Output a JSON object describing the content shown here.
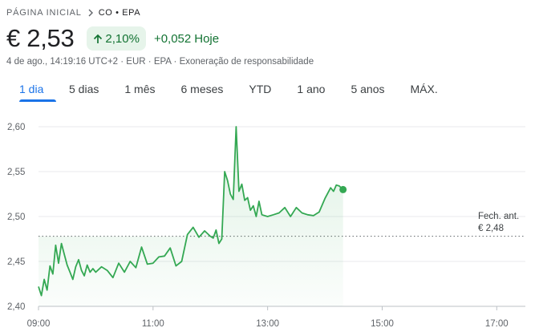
{
  "breadcrumb": {
    "home": "PÁGINA INICIAL",
    "crumb": "CO • EPA"
  },
  "quote": {
    "price": "€ 2,53",
    "change_pct": "2,10%",
    "change_abs": "+0,052",
    "change_period": "Hoje"
  },
  "meta": {
    "datetime": "4 de ago., 14:19:16 UTC+2",
    "currency": "EUR",
    "exchange": "EPA",
    "disclaimer": "Exoneração de responsabilidade"
  },
  "tabs": [
    {
      "label": "1 dia",
      "active": true
    },
    {
      "label": "5 dias",
      "active": false
    },
    {
      "label": "1 mês",
      "active": false
    },
    {
      "label": "6 meses",
      "active": false
    },
    {
      "label": "YTD",
      "active": false
    },
    {
      "label": "1 ano",
      "active": false
    },
    {
      "label": "5 anos",
      "active": false
    },
    {
      "label": "MÁX.",
      "active": false
    }
  ],
  "colors": {
    "up": "#137333",
    "line": "#34a853",
    "badge_bg": "#e6f4ea",
    "accent": "#1a73e8"
  },
  "icons": {
    "breadcrumb_separator": "chevron-right-icon",
    "trend": "arrow-up-icon"
  },
  "chart_data": {
    "type": "line",
    "title": "",
    "xlabel": "",
    "ylabel": "",
    "ylim": [
      2.4,
      2.6
    ],
    "yticks": [
      2.4,
      2.45,
      2.5,
      2.55,
      2.6
    ],
    "ytick_labels": [
      "2,40",
      "2,45",
      "2,50",
      "2,55",
      "2,60"
    ],
    "xlim": [
      "09:00",
      "17:30"
    ],
    "xticks": [
      "09:00",
      "11:00",
      "13:00",
      "15:00",
      "17:00"
    ],
    "grid": true,
    "previous_close": {
      "label": "Fech. ant.",
      "value_label": "€ 2,48",
      "value": 2.478
    },
    "series": [
      {
        "x": [
          "09:00",
          "09:03",
          "09:06",
          "09:09",
          "09:12",
          "09:15",
          "09:18",
          "09:21",
          "09:24",
          "09:27",
          "09:30",
          "09:33",
          "09:36",
          "09:39",
          "09:42",
          "09:45",
          "09:48",
          "09:51",
          "09:54",
          "09:57",
          "10:00",
          "10:06",
          "10:12",
          "10:18",
          "10:24",
          "10:30",
          "10:36",
          "10:42",
          "10:48",
          "10:54",
          "11:00",
          "11:06",
          "11:12",
          "11:18",
          "11:24",
          "11:30",
          "11:36",
          "11:42",
          "11:48",
          "11:54",
          "12:00",
          "12:03",
          "12:06",
          "12:09",
          "12:12",
          "12:15",
          "12:18",
          "12:21",
          "12:24",
          "12:27",
          "12:30",
          "12:33",
          "12:36",
          "12:39",
          "12:42",
          "12:45",
          "12:48",
          "12:51",
          "12:54",
          "13:00",
          "13:06",
          "13:12",
          "13:18",
          "13:24",
          "13:30",
          "13:36",
          "13:42",
          "13:48",
          "13:54",
          "14:00",
          "14:06",
          "14:09",
          "14:12",
          "14:15",
          "14:19"
        ],
        "y": [
          2.422,
          2.412,
          2.43,
          2.418,
          2.445,
          2.436,
          2.468,
          2.448,
          2.47,
          2.458,
          2.446,
          2.438,
          2.43,
          2.444,
          2.452,
          2.44,
          2.434,
          2.446,
          2.438,
          2.442,
          2.438,
          2.444,
          2.44,
          2.432,
          2.448,
          2.438,
          2.45,
          2.443,
          2.466,
          2.447,
          2.448,
          2.455,
          2.456,
          2.465,
          2.445,
          2.45,
          2.48,
          2.488,
          2.477,
          2.484,
          2.478,
          2.476,
          2.485,
          2.47,
          2.475,
          2.55,
          2.54,
          2.525,
          2.519,
          2.6,
          2.528,
          2.536,
          2.518,
          2.521,
          2.507,
          2.512,
          2.5,
          2.517,
          2.502,
          2.5,
          2.502,
          2.504,
          2.51,
          2.5,
          2.51,
          2.504,
          2.502,
          2.501,
          2.505,
          2.52,
          2.532,
          2.528,
          2.535,
          2.534,
          2.53
        ]
      }
    ]
  }
}
